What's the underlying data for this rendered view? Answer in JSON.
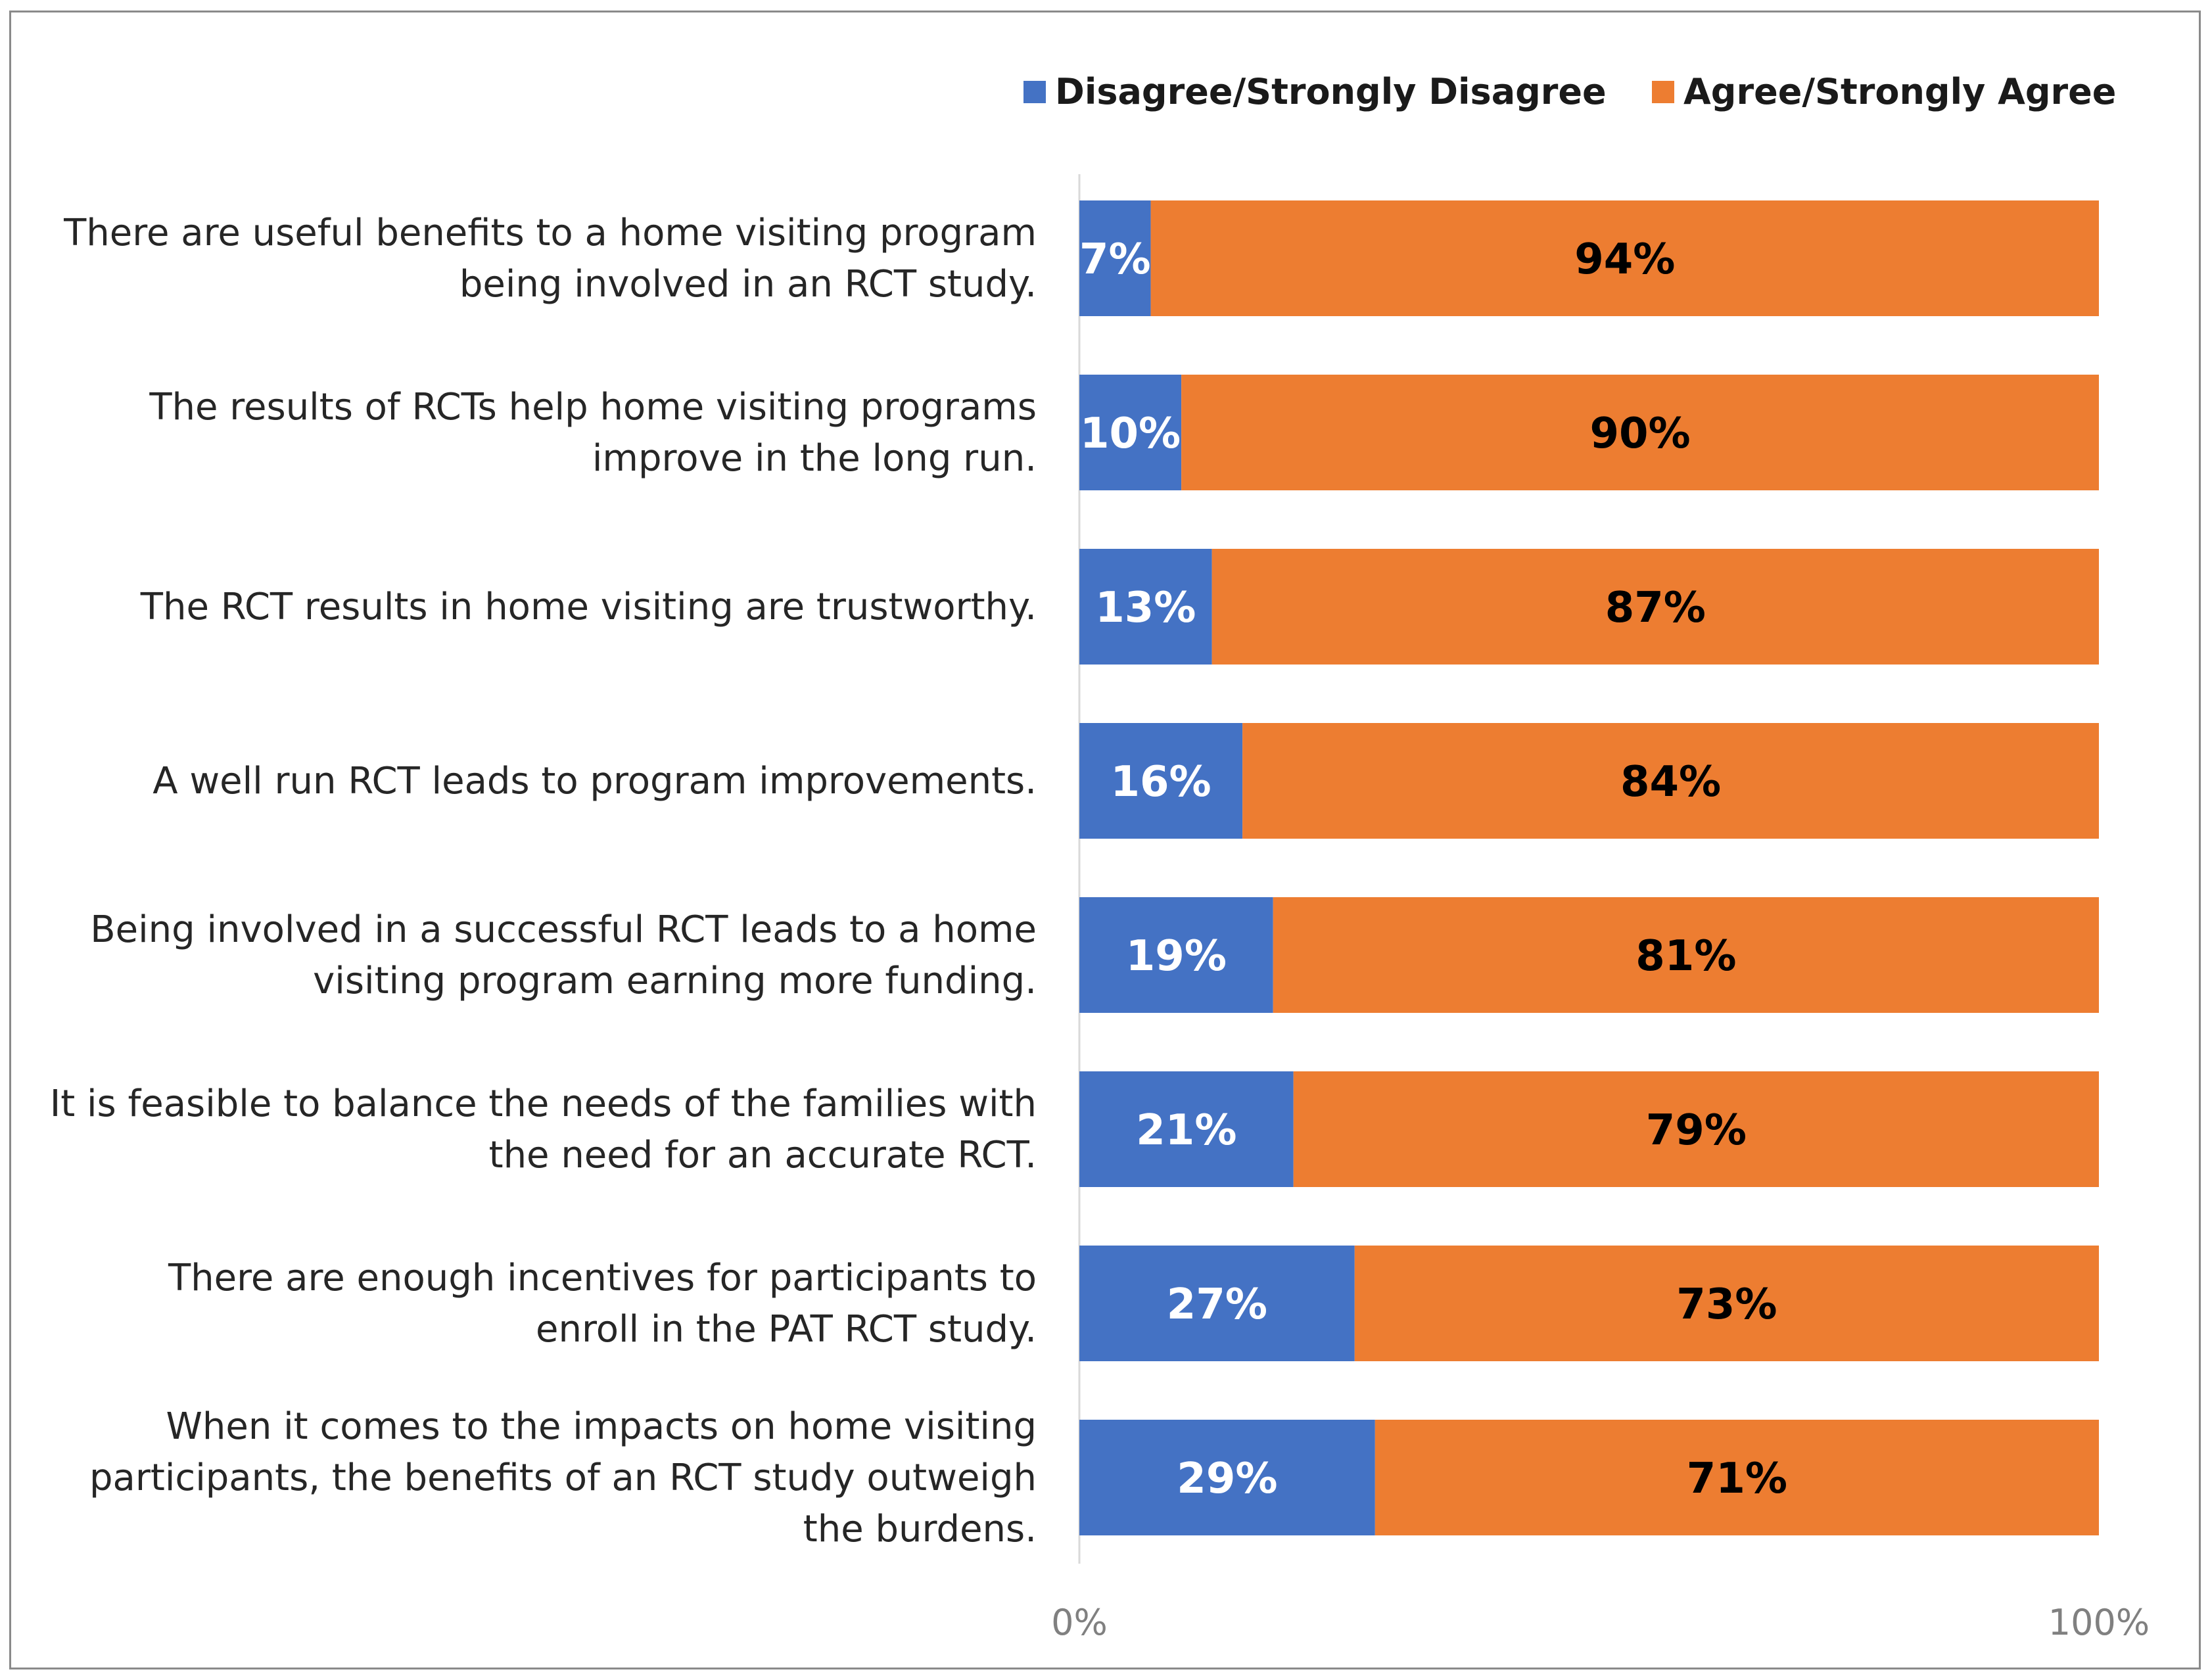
{
  "chart_data": {
    "type": "bar",
    "orientation": "horizontal",
    "stacked": true,
    "title": "",
    "xlabel": "",
    "ylabel": "",
    "xlim": [
      0,
      100
    ],
    "x_ticks": [
      "0%",
      "100%"
    ],
    "grid": false,
    "legend_position": "top-right",
    "categories": [
      [
        "There are useful benefits to a home visiting program",
        "being involved in an RCT study."
      ],
      [
        "The results of RCTs help home visiting programs",
        "improve in the long run."
      ],
      [
        "The RCT results in home visiting are trustworthy."
      ],
      [
        "A well run RCT leads to program improvements."
      ],
      [
        "Being involved in a successful RCT leads to a home",
        "visiting program earning more funding."
      ],
      [
        "It is feasible to balance the needs of the families with",
        "the need for an accurate RCT."
      ],
      [
        "There are enough incentives for participants to",
        "enroll in the PAT RCT study."
      ],
      [
        "When it comes to the impacts on home visiting",
        "participants, the benefits of an RCT study outweigh",
        "the burdens."
      ]
    ],
    "series": [
      {
        "name": "Disagree/Strongly Disagree",
        "color": "#4472C4",
        "values": [
          7,
          10,
          13,
          16,
          19,
          21,
          27,
          29
        ],
        "labels": [
          "7%",
          "10%",
          "13%",
          "16%",
          "19%",
          "21%",
          "27%",
          "29%"
        ]
      },
      {
        "name": "Agree/Strongly Agree",
        "color": "#ED7D31",
        "values": [
          94,
          90,
          87,
          84,
          81,
          79,
          73,
          71
        ],
        "labels": [
          "94%",
          "90%",
          "87%",
          "84%",
          "81%",
          "79%",
          "73%",
          "71%"
        ]
      }
    ]
  }
}
